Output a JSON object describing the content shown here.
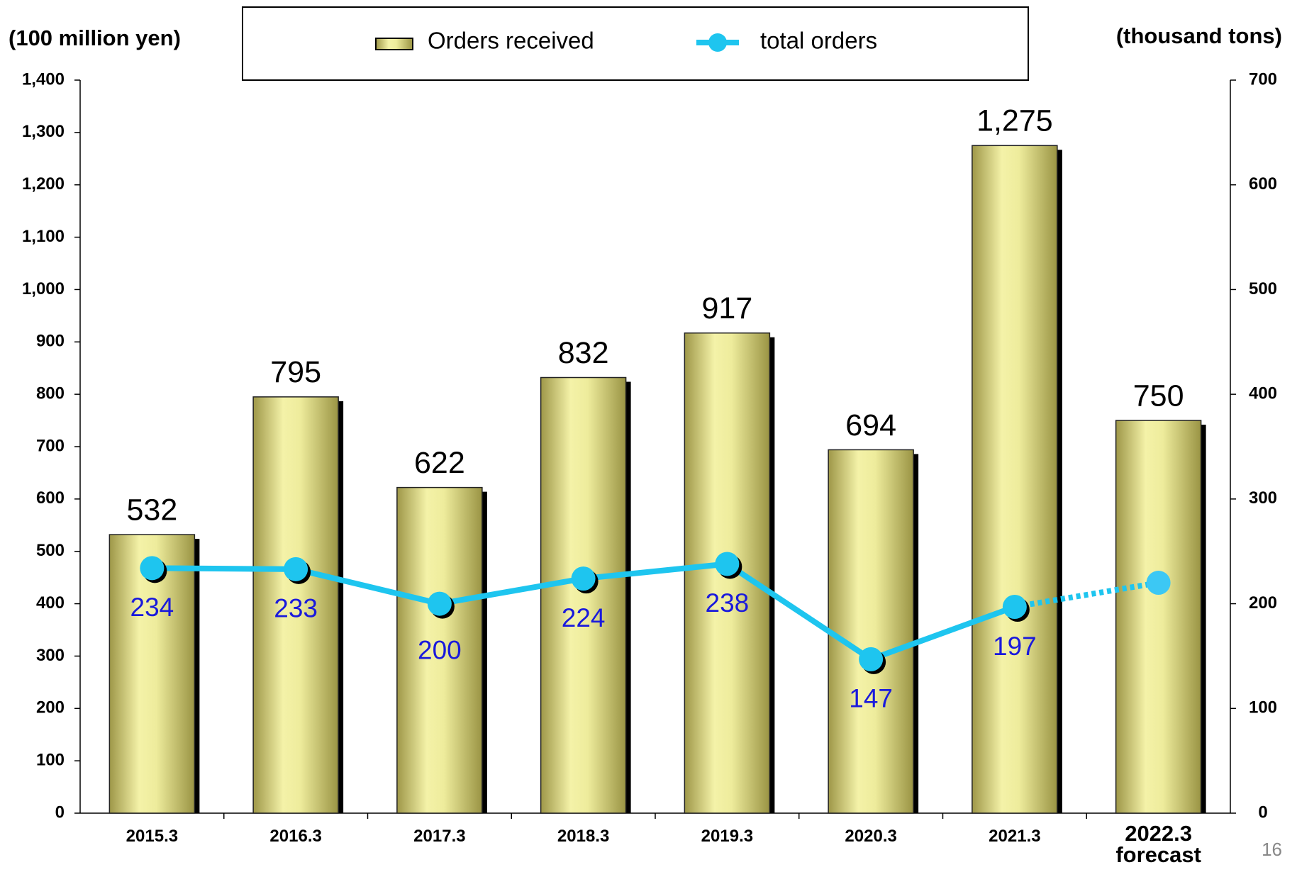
{
  "page_number": "16",
  "chart_data": {
    "type": "bar_line",
    "y_label": "(100 million yen)",
    "y2_label": "(thousand tons)",
    "categories": [
      "2015.3",
      "2016.3",
      "2017.3",
      "2018.3",
      "2019.3",
      "2020.3",
      "2021.3",
      "2022.3 forecast"
    ],
    "forecast_index": 7,
    "series": [
      {
        "name": "Orders received",
        "type": "bar",
        "color": "#e2e08a",
        "values": [
          532,
          795,
          622,
          832,
          917,
          694,
          1275,
          750
        ],
        "value_labels": [
          "532",
          "795",
          "622",
          "832",
          "917",
          "694",
          "1,275",
          "750"
        ]
      },
      {
        "name": "total orders",
        "type": "line",
        "axis": "y2",
        "color": "#1ec5ef",
        "values": [
          234,
          233,
          200,
          224,
          238,
          147,
          197,
          220
        ],
        "value_labels": [
          "234",
          "233",
          "200",
          "224",
          "238",
          "147",
          "197",
          null
        ]
      }
    ],
    "ylim": [
      0,
      1400
    ],
    "yticks": [
      0,
      100,
      200,
      300,
      400,
      500,
      600,
      700,
      800,
      900,
      {
        "value": 1000,
        "label": "1,000"
      },
      {
        "value": 1100,
        "label": "1,100"
      },
      {
        "value": 1200,
        "label": "1,200"
      },
      {
        "value": 1300,
        "label": "1,300"
      },
      {
        "value": 1400,
        "label": "1,400"
      }
    ],
    "y2lim": [
      0,
      700
    ],
    "y2ticks": [
      0,
      100,
      200,
      300,
      400,
      500,
      600,
      700
    ],
    "legend": "top"
  }
}
